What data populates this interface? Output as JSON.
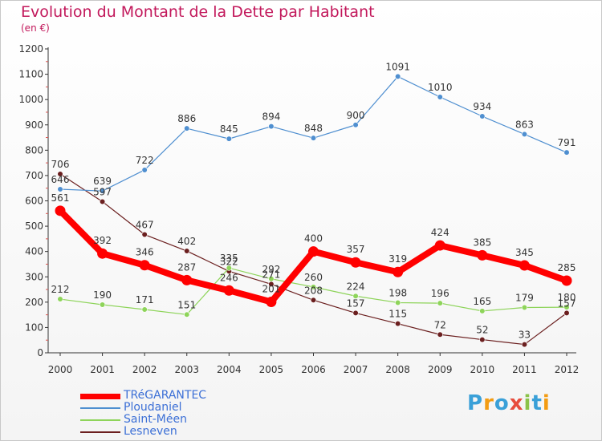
{
  "header": {
    "title": "Evolution du Montant de la Dette par Habitant",
    "unit": "(en €)"
  },
  "logo": {
    "text": "Proxiti",
    "letters": [
      {
        "ch": "P",
        "color": "#3aa0d8"
      },
      {
        "ch": "r",
        "color": "#f39c12"
      },
      {
        "ch": "o",
        "color": "#3aa0d8"
      },
      {
        "ch": "x",
        "color": "#e74c3c"
      },
      {
        "ch": "i",
        "color": "#8bc34a"
      },
      {
        "ch": "t",
        "color": "#3aa0d8"
      },
      {
        "ch": "i",
        "color": "#f39c12"
      }
    ]
  },
  "chart_data": {
    "type": "line",
    "title": "Evolution du Montant de la Dette par Habitant",
    "subtitle": "(en €)",
    "x": [
      "2000",
      "2001",
      "2002",
      "2003",
      "2004",
      "2005",
      "2006",
      "2007",
      "2008",
      "2009",
      "2010",
      "2011",
      "2012"
    ],
    "ylim": [
      0,
      1200
    ],
    "yticks": [
      0,
      100,
      200,
      300,
      400,
      500,
      600,
      700,
      800,
      900,
      1000,
      1100,
      1200
    ],
    "grid": false,
    "legend_position": "bottom-left",
    "series": [
      {
        "name": "TRéGARANTEC",
        "color": "#ff0000",
        "values": [
          561,
          392,
          346,
          287,
          246,
          201,
          400,
          357,
          319,
          424,
          385,
          345,
          285
        ]
      },
      {
        "name": "Ploudaniel",
        "color": "#4f8fd0",
        "values": [
          646,
          639,
          722,
          886,
          845,
          894,
          848,
          900,
          1091,
          1010,
          934,
          863,
          791
        ]
      },
      {
        "name": "Saint-Méen",
        "color": "#8ed45a",
        "values": [
          212,
          190,
          171,
          151,
          335,
          292,
          260,
          224,
          198,
          196,
          165,
          179,
          180
        ]
      },
      {
        "name": "Lesneven",
        "color": "#6b1f1f",
        "values": [
          706,
          597,
          467,
          402,
          322,
          271,
          208,
          157,
          115,
          72,
          52,
          33,
          157
        ]
      }
    ],
    "labels": [
      [
        "561",
        "392",
        "346",
        "287",
        "246",
        "201",
        "400",
        "357",
        "319",
        "424",
        "385",
        "345",
        "285"
      ],
      [
        "646",
        "639",
        "722",
        "886",
        "845",
        "894",
        "848",
        "900",
        "1091",
        "1010",
        "934",
        "863",
        "791"
      ],
      [
        "212",
        "190",
        "171",
        "151",
        "335",
        "292",
        "260",
        "224",
        "198",
        "196",
        "165",
        "179",
        "180"
      ],
      [
        "706",
        "597",
        "467",
        "402",
        "322",
        "271",
        "208",
        "157",
        "115",
        "72",
        "52",
        "33",
        "157"
      ]
    ]
  }
}
